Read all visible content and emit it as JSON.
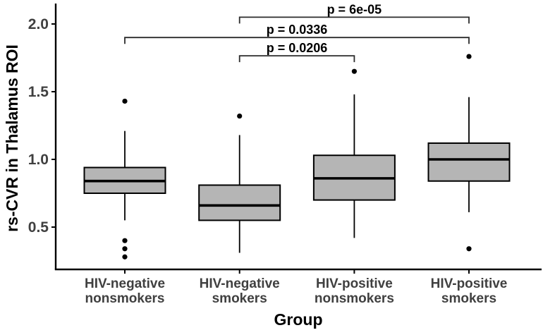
{
  "chart_data": {
    "type": "boxplot",
    "title": "",
    "xlabel": "Group",
    "ylabel": "rs-CVR in Thalamus ROI",
    "ylim": [
      0.19,
      2.15
    ],
    "yticks": [
      2.0,
      1.5,
      1.0,
      0.5
    ],
    "ytick_labels": [
      "2.0",
      "1.5",
      "1.0",
      "0.5"
    ],
    "grid": "off",
    "legend": "none",
    "categories": [
      "HIV-negative nonsmokers",
      "HIV-negative smokers",
      "HIV-positive nonsmokers",
      "HIV-positive smokers"
    ],
    "category_label_lines": [
      [
        "HIV-negative",
        "nonsmokers"
      ],
      [
        "HIV-negative",
        "smokers"
      ],
      [
        "HIV-positive",
        "nonsmokers"
      ],
      [
        "HIV-positive",
        "smokers"
      ]
    ],
    "boxes": [
      {
        "group": "HIV-negative nonsmokers",
        "whisker_low": 0.55,
        "q1": 0.75,
        "median": 0.84,
        "q3": 0.94,
        "whisker_high": 1.21,
        "outliers": [
          1.43,
          0.4,
          0.34,
          0.28
        ]
      },
      {
        "group": "HIV-negative smokers",
        "whisker_low": 0.31,
        "q1": 0.55,
        "median": 0.66,
        "q3": 0.81,
        "whisker_high": 1.18,
        "outliers": [
          1.32
        ]
      },
      {
        "group": "HIV-positive nonsmokers",
        "whisker_low": 0.42,
        "q1": 0.7,
        "median": 0.86,
        "q3": 1.03,
        "whisker_high": 1.48,
        "outliers": [
          1.65
        ]
      },
      {
        "group": "HIV-positive smokers",
        "whisker_low": 0.61,
        "q1": 0.84,
        "median": 1.0,
        "q3": 1.12,
        "whisker_high": 1.46,
        "outliers": [
          1.76,
          0.34
        ]
      }
    ],
    "significance_brackets": [
      {
        "label": "p = 6e-05",
        "from": 1,
        "to": 3,
        "y": 2.05
      },
      {
        "label": "p = 0.0336",
        "from": 0,
        "to": 3,
        "y": 1.9
      },
      {
        "label": "p = 0.0206",
        "from": 1,
        "to": 2,
        "y": 1.765
      }
    ],
    "colors": {
      "box_fill": "#b5b5b5",
      "box_border": "#000000",
      "median": "#000000",
      "whisker": "#000000",
      "outlier": "#000000",
      "axis_line": "#000000",
      "tick_text": "#404040",
      "axis_title_text": "#000000",
      "bracket": "#2b2b2b",
      "p_text": "#000000",
      "background": "#ffffff"
    }
  }
}
